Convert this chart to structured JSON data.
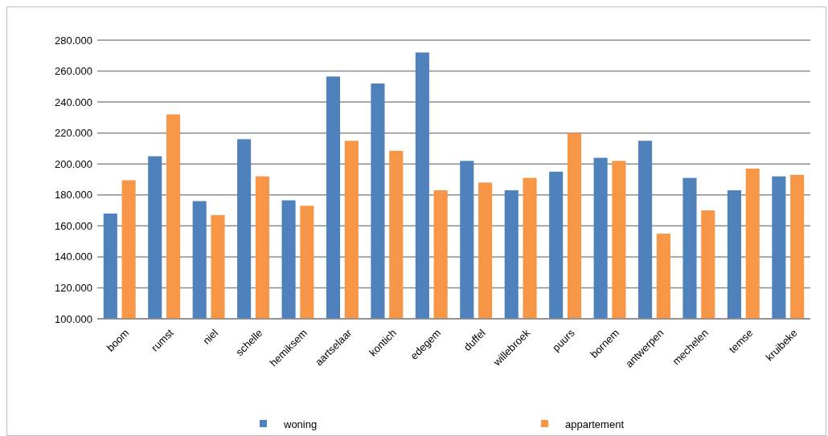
{
  "chart_data": {
    "type": "bar",
    "categories": [
      "boom",
      "rumst",
      "niel",
      "schelle",
      "hemiksem",
      "aartselaar",
      "kontich",
      "edegem",
      "duffel",
      "willebroek",
      "puurs",
      "bornem",
      "antwerpen",
      "mechelen",
      "temse",
      "kruibeke"
    ],
    "series": [
      {
        "name": "woning",
        "color": "#4f81bd",
        "values": [
          168000,
          205000,
          176000,
          216000,
          176500,
          256500,
          252000,
          272000,
          202000,
          183000,
          195000,
          204000,
          215000,
          191000,
          183000,
          192000
        ]
      },
      {
        "name": "appartement",
        "color": "#f79646",
        "values": [
          189500,
          232000,
          167000,
          192000,
          173000,
          215000,
          208500,
          183000,
          188000,
          191000,
          220000,
          202000,
          155000,
          170000,
          197000,
          193000
        ]
      }
    ],
    "ylim": [
      100000,
      280000
    ],
    "yticks": [
      {
        "value": 100000,
        "label": "100.000"
      },
      {
        "value": 120000,
        "label": "120.000"
      },
      {
        "value": 140000,
        "label": "140.000"
      },
      {
        "value": 160000,
        "label": "160.000"
      },
      {
        "value": 180000,
        "label": "180.000"
      },
      {
        "value": 200000,
        "label": "200.000"
      },
      {
        "value": 220000,
        "label": "220.000"
      },
      {
        "value": 240000,
        "label": "240.000"
      },
      {
        "value": 260000,
        "label": "260.000"
      },
      {
        "value": 280000,
        "label": "280.000"
      }
    ],
    "grid": "y",
    "legend": "bottom"
  }
}
